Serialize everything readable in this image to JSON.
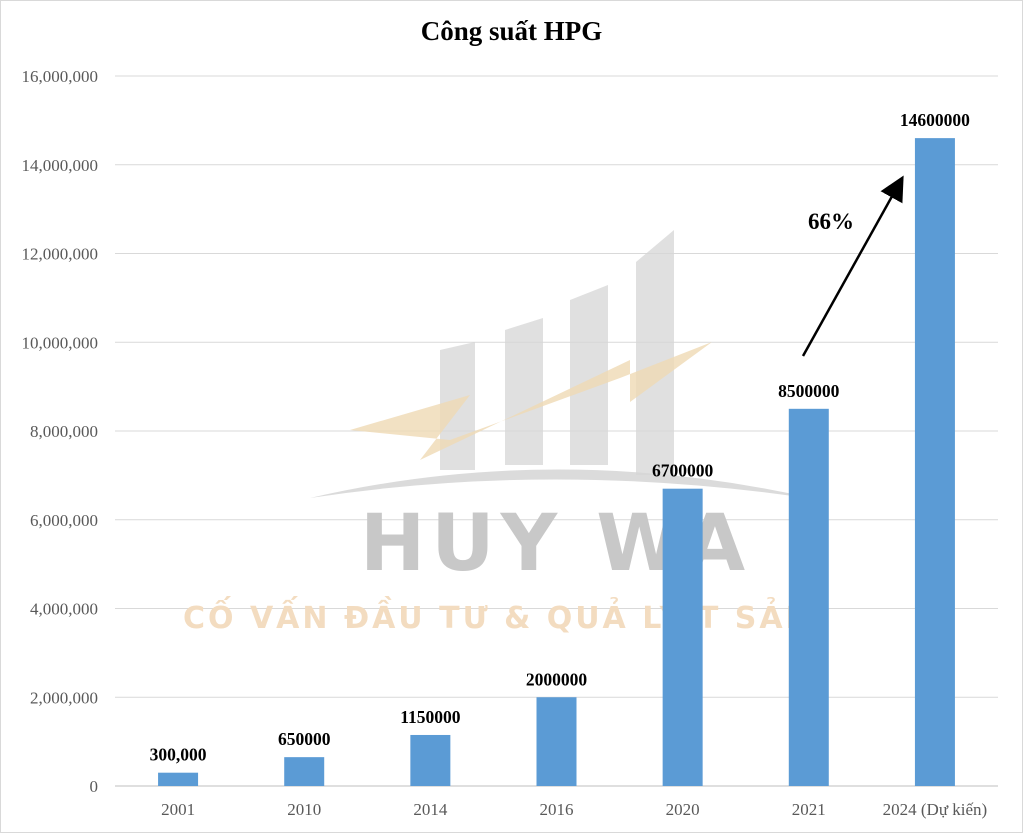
{
  "chart_data": {
    "type": "bar",
    "title": "Công suất HPG",
    "categories": [
      "2001",
      "2010",
      "2014",
      "2016",
      "2020",
      "2021",
      "2024  (Dự kiến)"
    ],
    "values": [
      300000,
      650000,
      1150000,
      2000000,
      6700000,
      8500000,
      14600000
    ],
    "data_labels": [
      "300,000",
      "650000",
      "1150000",
      "2000000",
      "6700000",
      "8500000",
      "14600000"
    ],
    "ylim": [
      0,
      16000000
    ],
    "y_ticks": [
      0,
      2000000,
      4000000,
      6000000,
      8000000,
      10000000,
      12000000,
      14000000,
      16000000
    ],
    "y_tick_labels": [
      "0",
      "2,000,000",
      "4,000,000",
      "6,000,000",
      "8,000,000",
      "10,000,000",
      "12,000,000",
      "14,000,000",
      "16,000,000"
    ],
    "bar_color": "#5b9bd5",
    "grid": true,
    "annotation": {
      "text": "66%",
      "arrow": true
    }
  },
  "watermark": {
    "brand": "HUY WA",
    "tagline": "CỐ VẤN ĐẦU TƯ & QUẢ  LÝ T   SẢN"
  }
}
